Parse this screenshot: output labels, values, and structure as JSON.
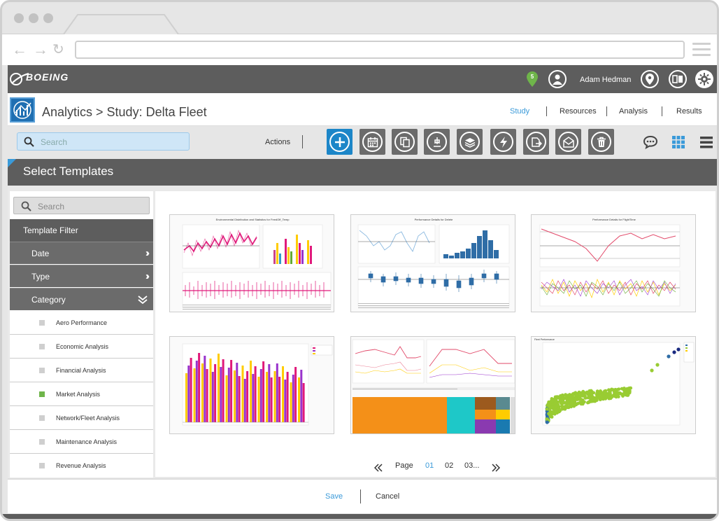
{
  "header": {
    "brand": "BOEING",
    "notification_count": "5",
    "user_name": "Adam Hedman"
  },
  "title": {
    "page_title": "Analytics > Study: Delta Fleet",
    "tabs": [
      {
        "label": "Study",
        "active": true
      },
      {
        "label": "Resources",
        "active": false
      },
      {
        "label": "Analysis",
        "active": false
      },
      {
        "label": "Results",
        "active": false
      }
    ]
  },
  "toolbar": {
    "search_placeholder": "Search",
    "actions_label": "Actions",
    "buttons": [
      "plus-icon",
      "calendar-icon",
      "copy-icon",
      "import-icon",
      "layers-icon",
      "bolt-icon",
      "export-icon",
      "mail-icon",
      "trash-icon"
    ],
    "views": [
      "comment-icon",
      "grid-view-icon",
      "list-view-icon"
    ]
  },
  "section": {
    "title": "Select Templates"
  },
  "sidebar": {
    "search_placeholder": "Search",
    "filter_title": "Template Filter",
    "filters": [
      {
        "label": "Date",
        "expanded": false
      },
      {
        "label": "Type",
        "expanded": false
      },
      {
        "label": "Category",
        "expanded": true
      }
    ],
    "categories": [
      {
        "label": "Aero Performance",
        "checked": false
      },
      {
        "label": "Economic Analysis",
        "checked": false
      },
      {
        "label": "Financial Analysis",
        "checked": false
      },
      {
        "label": "Market Analysis",
        "checked": true
      },
      {
        "label": "Network/Fleet Analysis",
        "checked": false
      },
      {
        "label": "Maintenance Analysis",
        "checked": false
      },
      {
        "label": "Revenue Analysis",
        "checked": false
      }
    ]
  },
  "templates": [
    {
      "title": "Environmental Distribution and Statistics for FeedOff_Temp"
    },
    {
      "title": "Performance Details for Delete"
    },
    {
      "title": "Performance Details for FlightTime"
    },
    {
      "title": ""
    },
    {
      "title": ""
    },
    {
      "title": "Fleet Performance"
    }
  ],
  "pagination": {
    "label": "Page",
    "pages": [
      "01",
      "02",
      "03..."
    ],
    "current": "01"
  },
  "footer": {
    "save_label": "Save",
    "cancel_label": "Cancel"
  },
  "colors": {
    "accent": "#3a9ad9",
    "header": "#5d5d5d",
    "primary_button": "#1c86c8",
    "checked": "#6fb54a"
  }
}
